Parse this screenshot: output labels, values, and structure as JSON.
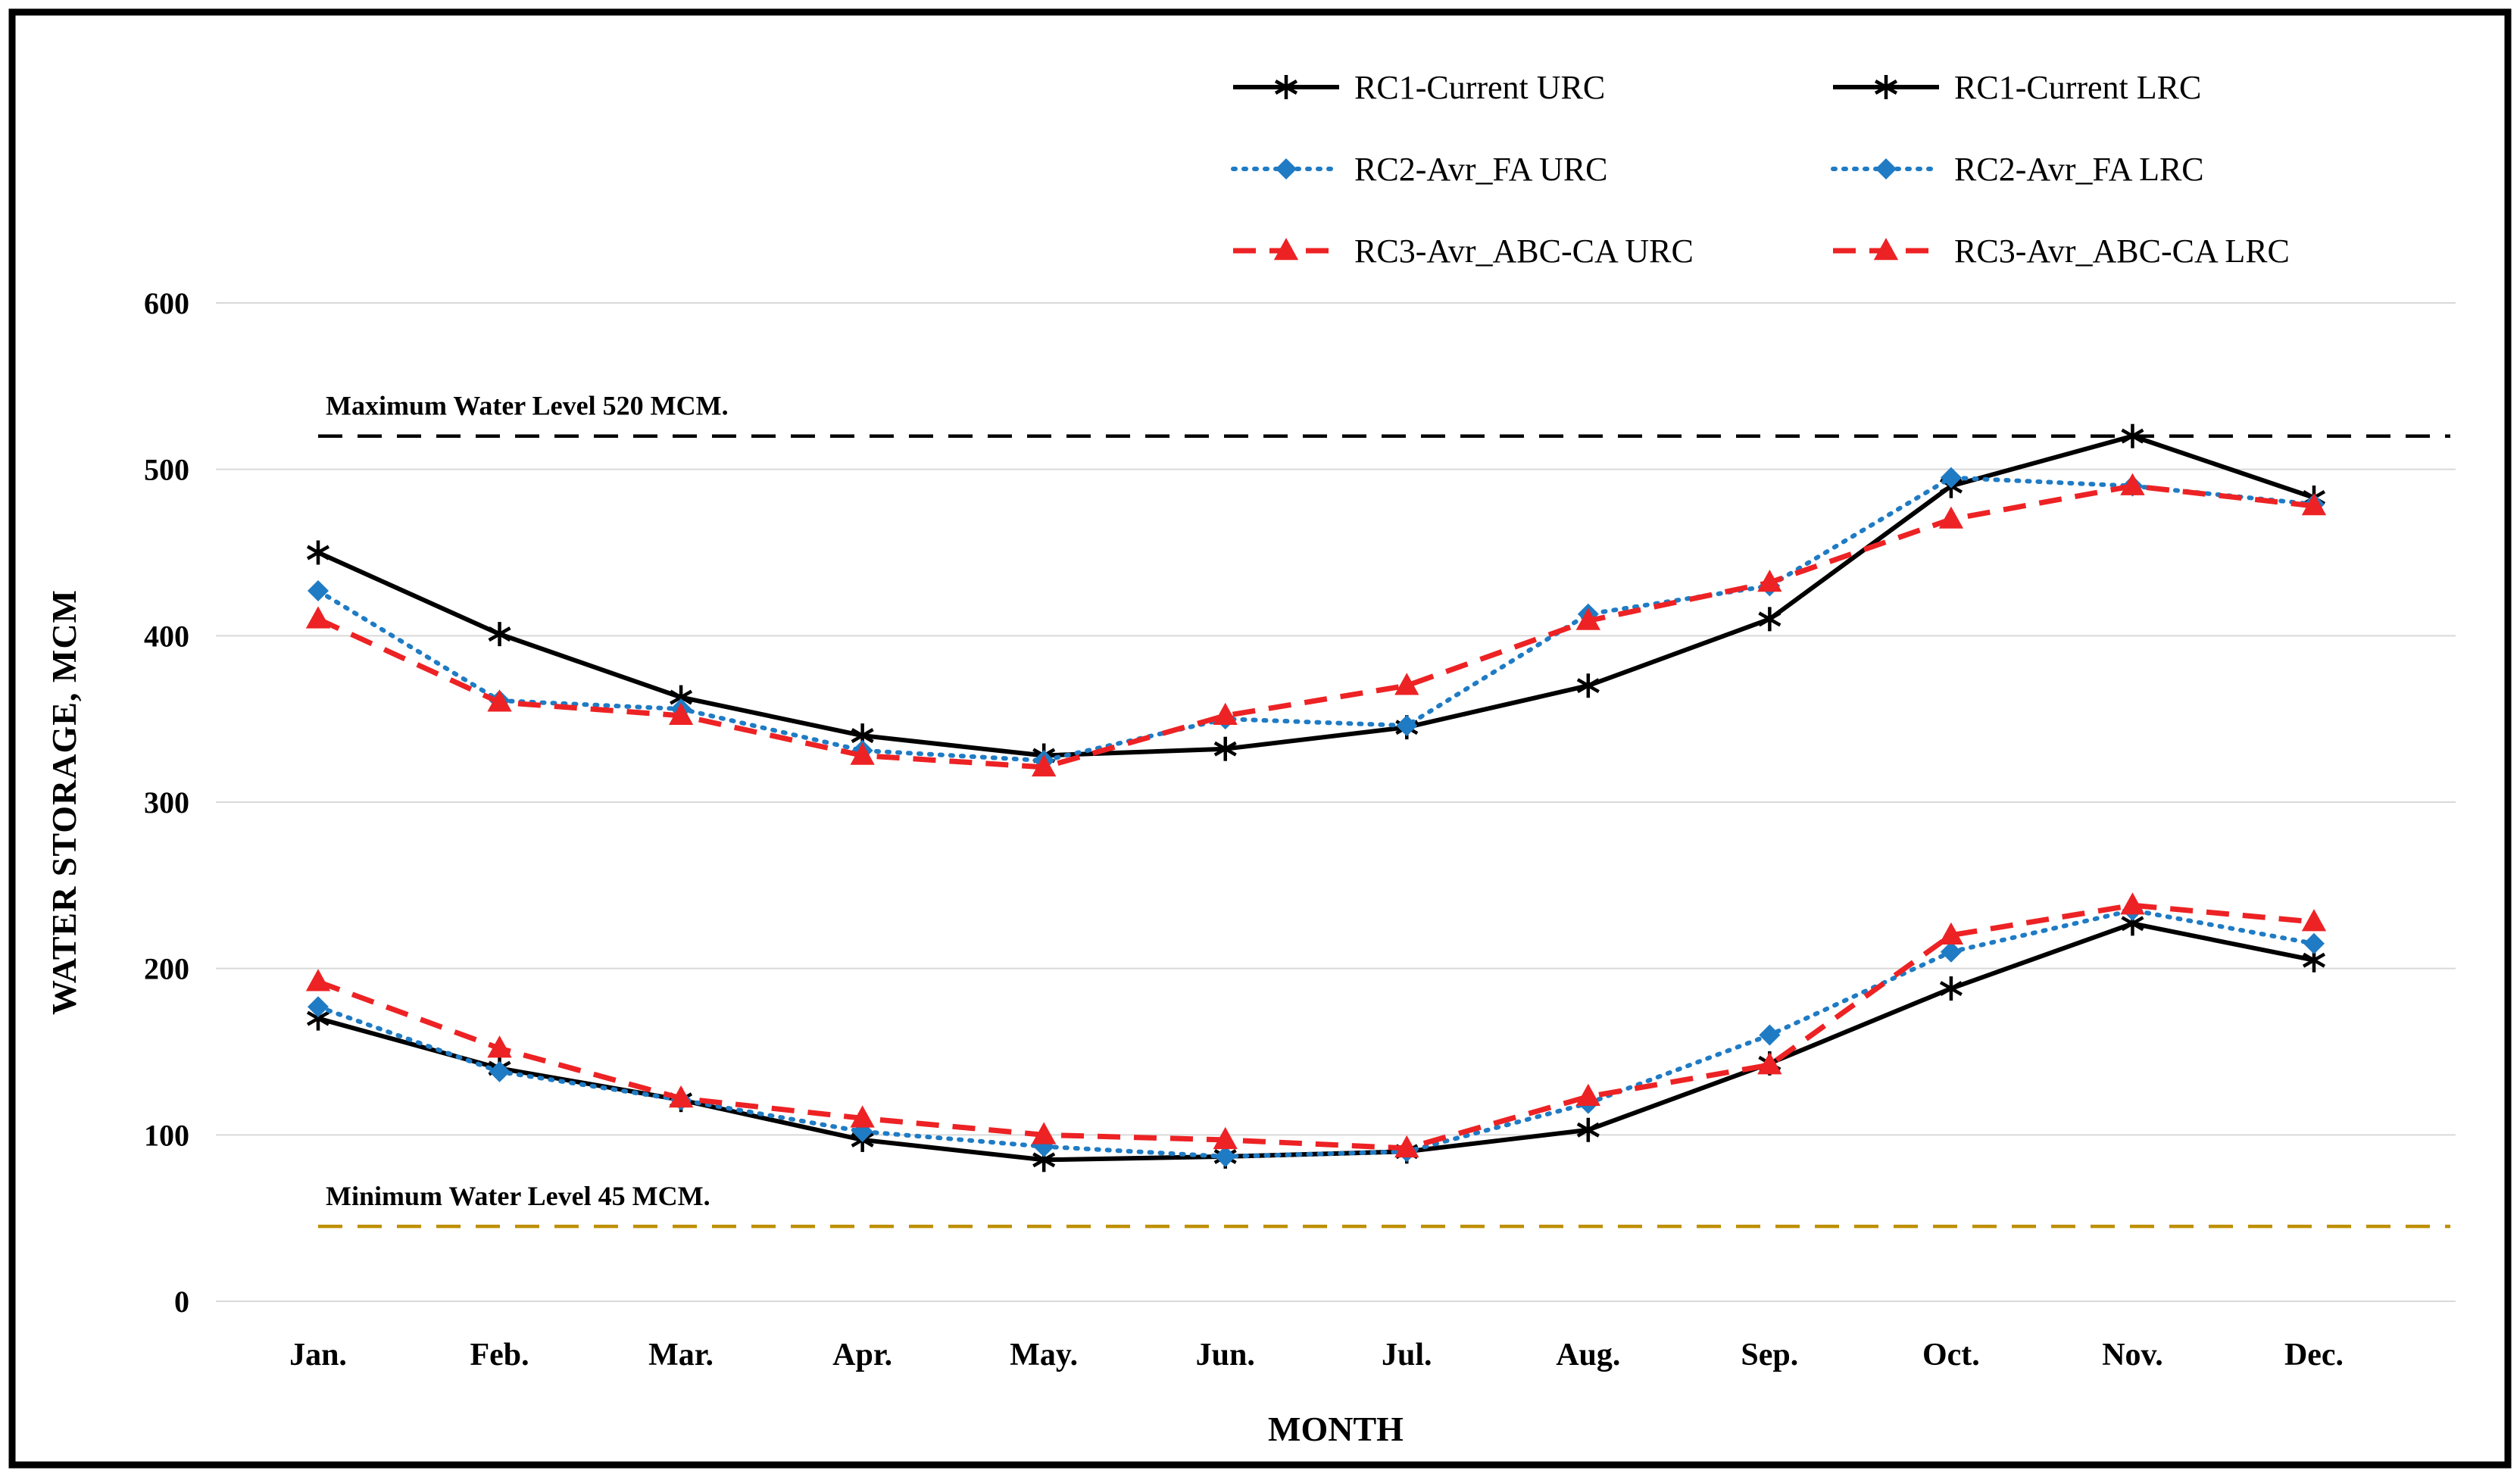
{
  "page": {
    "background": "#FFFFFF",
    "border_color": "#000000"
  },
  "chart_data": {
    "type": "line",
    "title": "",
    "xlabel": "MONTH",
    "ylabel": "WATER STORAGE, MCM",
    "ylim": [
      0,
      600
    ],
    "yticks": [
      0,
      100,
      200,
      300,
      400,
      500,
      600
    ],
    "grid": "horizontal",
    "grid_color": "#D9D9D9",
    "legend_position": "top-right",
    "categories": [
      "Jan.",
      "Feb.",
      "Mar.",
      "Apr.",
      "May.",
      "Jun.",
      "Jul.",
      "Aug.",
      "Sep.",
      "Oct.",
      "Nov.",
      "Dec."
    ],
    "series": [
      {
        "name": "RC1-Current URC",
        "color": "#000000",
        "line_style": "solid",
        "marker": "star",
        "values": [
          450,
          401,
          363,
          340,
          328,
          332,
          345,
          370,
          410,
          490,
          520,
          483
        ]
      },
      {
        "name": "RC1-Current LRC",
        "color": "#000000",
        "line_style": "solid",
        "marker": "star",
        "values": [
          170,
          140,
          121,
          97,
          85,
          87,
          90,
          103,
          143,
          188,
          227,
          205
        ]
      },
      {
        "name": "RC2-Avr_FA URC",
        "color": "#1F7BC4",
        "line_style": "dotted",
        "marker": "diamond",
        "values": [
          427,
          361,
          356,
          331,
          325,
          350,
          346,
          413,
          430,
          495,
          490,
          479
        ]
      },
      {
        "name": "RC2-Avr_FA LRC",
        "color": "#1F7BC4",
        "line_style": "dotted",
        "marker": "diamond",
        "values": [
          177,
          138,
          121,
          102,
          93,
          87,
          90,
          119,
          160,
          210,
          235,
          215
        ]
      },
      {
        "name": "RC3-Avr_ABC-CA URC",
        "color": "#ED2224",
        "line_style": "dashed",
        "marker": "triangle",
        "values": [
          410,
          360,
          352,
          328,
          321,
          352,
          370,
          409,
          432,
          470,
          490,
          478
        ]
      },
      {
        "name": "RC3-Avr_ABC-CA LRC",
        "color": "#ED2224",
        "line_style": "dashed",
        "marker": "triangle",
        "values": [
          192,
          152,
          122,
          110,
          100,
          97,
          92,
          123,
          142,
          220,
          238,
          228
        ]
      }
    ],
    "reference_lines": [
      {
        "name": "max-water-level",
        "label": "Maximum Water Level  520 MCM.",
        "value": 520,
        "color": "#000000",
        "style": "dashed"
      },
      {
        "name": "min-water-level",
        "label": "Minimum Water Level  45 MCM.",
        "value": 45,
        "color": "#BF8F00",
        "style": "dashed"
      }
    ]
  }
}
